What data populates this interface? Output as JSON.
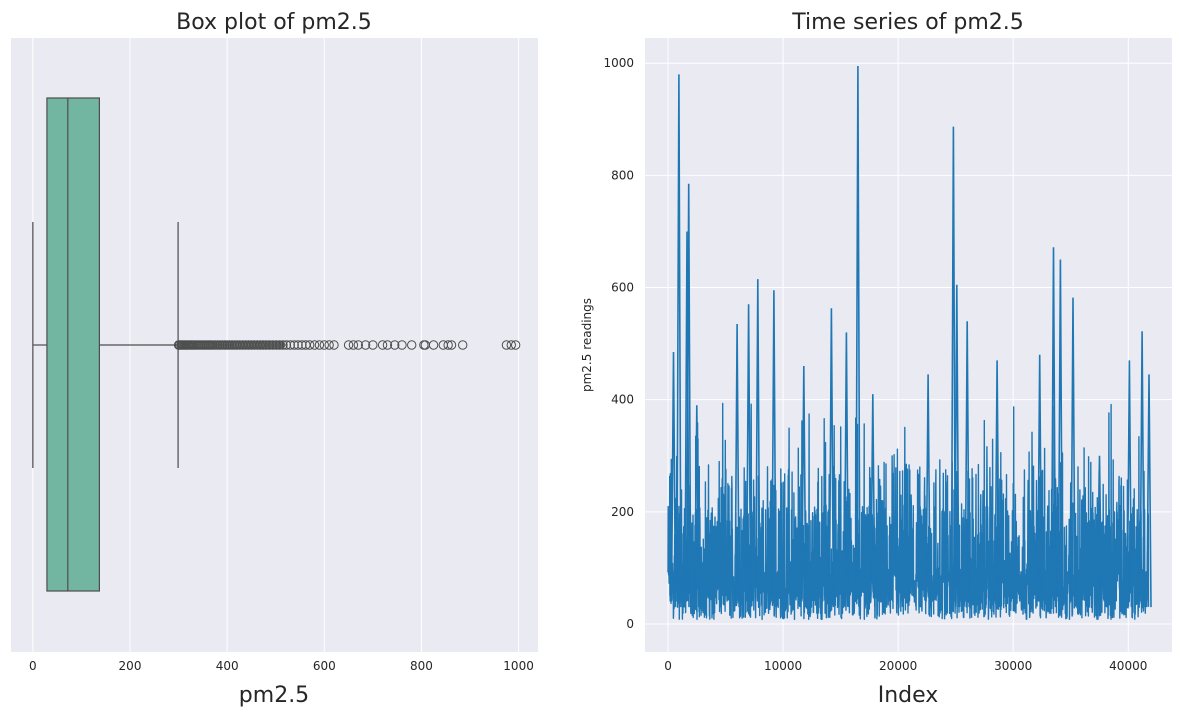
{
  "chart_data": [
    {
      "type": "box",
      "title": "Box plot of pm2.5",
      "xlabel": "pm2.5",
      "ylabel": "",
      "xlim": [
        -45,
        1040
      ],
      "xticks": [
        0,
        200,
        400,
        600,
        800,
        1000
      ],
      "grid": true,
      "box": {
        "whisker_low": 0,
        "q1": 29,
        "median": 72,
        "q3": 137,
        "whisker_high": 299,
        "color": "#72b6a1"
      },
      "outliers": [
        300,
        302,
        305,
        308,
        311,
        314,
        317,
        320,
        324,
        327,
        330,
        334,
        338,
        342,
        346,
        350,
        354,
        358,
        362,
        366,
        370,
        375,
        380,
        385,
        390,
        395,
        400,
        405,
        410,
        415,
        420,
        426,
        432,
        438,
        444,
        450,
        456,
        462,
        468,
        474,
        480,
        487,
        494,
        501,
        508,
        515,
        522,
        530,
        538,
        546,
        554,
        562,
        570,
        580,
        590,
        600,
        610,
        620,
        650,
        660,
        670,
        685,
        700,
        720,
        730,
        745,
        760,
        780,
        805,
        808,
        825,
        845,
        855,
        862,
        885,
        975,
        985,
        994
      ]
    },
    {
      "type": "line",
      "title": "Time series of pm2.5",
      "xlabel": "Index",
      "ylabel": "pm2.5 readings",
      "xlim": [
        -2000,
        43800
      ],
      "ylim": [
        -50,
        1045
      ],
      "xticks": [
        0,
        10000,
        20000,
        30000,
        40000
      ],
      "yticks": [
        0,
        200,
        400,
        600,
        800,
        1000
      ],
      "grid": true,
      "n_points": 41757,
      "color": "#1f77b4",
      "peaks": [
        {
          "x": 480,
          "y": 485
        },
        {
          "x": 950,
          "y": 980
        },
        {
          "x": 1800,
          "y": 785
        },
        {
          "x": 1650,
          "y": 700
        },
        {
          "x": 2500,
          "y": 390
        },
        {
          "x": 6000,
          "y": 535
        },
        {
          "x": 7000,
          "y": 570
        },
        {
          "x": 7800,
          "y": 615
        },
        {
          "x": 9200,
          "y": 595
        },
        {
          "x": 11800,
          "y": 460
        },
        {
          "x": 14200,
          "y": 563
        },
        {
          "x": 15500,
          "y": 520
        },
        {
          "x": 16500,
          "y": 995
        },
        {
          "x": 17800,
          "y": 410
        },
        {
          "x": 22600,
          "y": 445
        },
        {
          "x": 24800,
          "y": 887
        },
        {
          "x": 25100,
          "y": 605
        },
        {
          "x": 26000,
          "y": 540
        },
        {
          "x": 28600,
          "y": 470
        },
        {
          "x": 32300,
          "y": 480
        },
        {
          "x": 33500,
          "y": 672
        },
        {
          "x": 34100,
          "y": 650
        },
        {
          "x": 35200,
          "y": 582
        },
        {
          "x": 37500,
          "y": 300
        },
        {
          "x": 40100,
          "y": 470
        },
        {
          "x": 41200,
          "y": 522
        },
        {
          "x": 41800,
          "y": 445
        }
      ]
    }
  ]
}
